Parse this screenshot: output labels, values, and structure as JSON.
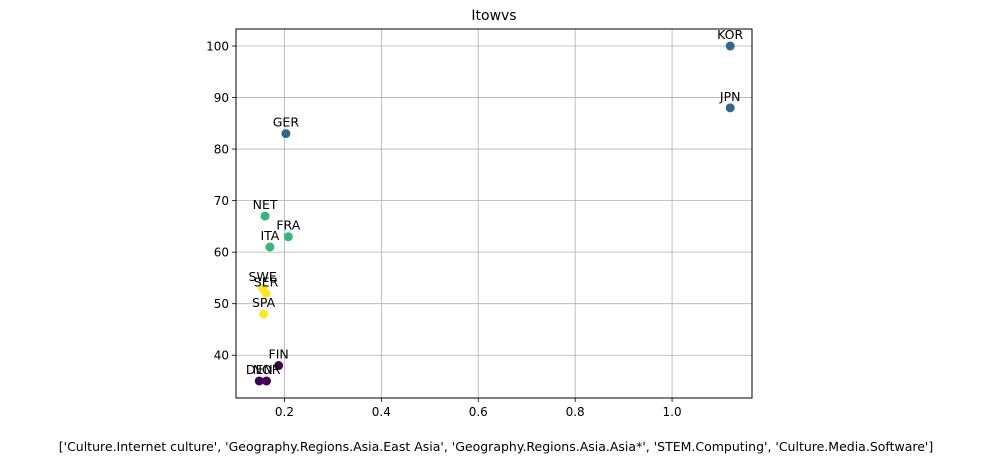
{
  "chart_data": {
    "type": "scatter",
    "title": "Itowvs",
    "xlabel": "['Culture.Internet culture', 'Geography.Regions.Asia.East Asia', 'Geography.Regions.Asia.Asia*', 'STEM.Computing', 'Culture.Media.Software']",
    "ylabel": "",
    "xlim": [
      0.1,
      1.165
    ],
    "ylim": [
      31.7,
      103.3
    ],
    "xticks": [
      0.2,
      0.4,
      0.6,
      0.8,
      1.0
    ],
    "yticks": [
      40,
      50,
      60,
      70,
      80,
      90,
      100
    ],
    "grid": true,
    "legend": "none",
    "points": [
      {
        "label": "KOR",
        "x": 1.12,
        "y": 100,
        "color": "#31688e"
      },
      {
        "label": "JPN",
        "x": 1.12,
        "y": 88,
        "color": "#31688e"
      },
      {
        "label": "GER",
        "x": 0.203,
        "y": 83,
        "color": "#31688e"
      },
      {
        "label": "NET",
        "x": 0.16,
        "y": 67,
        "color": "#35b779"
      },
      {
        "label": "FRA",
        "x": 0.208,
        "y": 63,
        "color": "#35b779"
      },
      {
        "label": "ITA",
        "x": 0.17,
        "y": 61,
        "color": "#35b779"
      },
      {
        "label": "SWE",
        "x": 0.155,
        "y": 53,
        "color": "#fde725"
      },
      {
        "label": "SER",
        "x": 0.162,
        "y": 52,
        "color": "#fde725"
      },
      {
        "label": "SPA",
        "x": 0.157,
        "y": 48,
        "color": "#fde725"
      },
      {
        "label": "FIN",
        "x": 0.188,
        "y": 38,
        "color": "#440154"
      },
      {
        "label": "DEN",
        "x": 0.148,
        "y": 35,
        "color": "#440154"
      },
      {
        "label": "NOR",
        "x": 0.163,
        "y": 35,
        "color": "#440154"
      }
    ]
  }
}
